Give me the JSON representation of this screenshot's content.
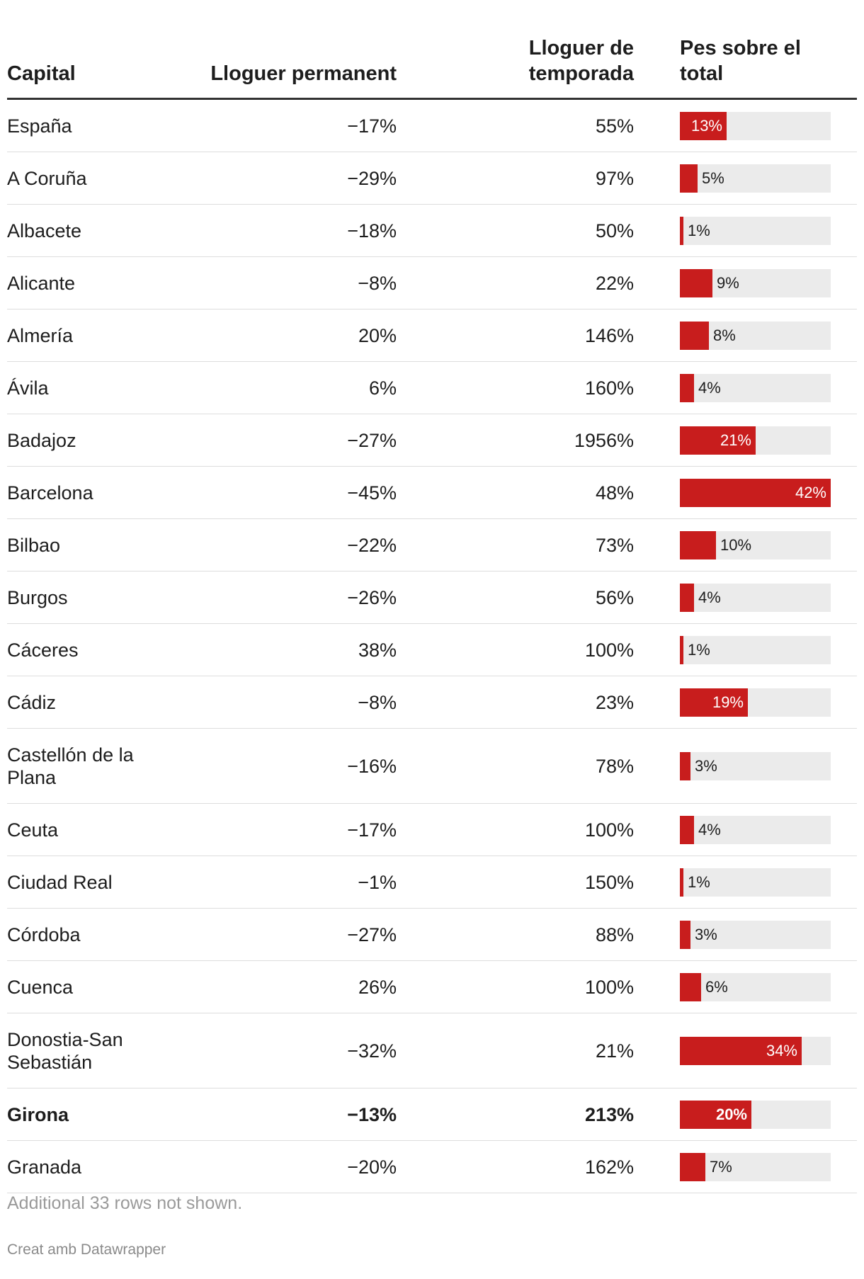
{
  "chart_data": {
    "type": "table",
    "columns": [
      "Capital",
      "Lloguer permanent",
      "Lloguer de temporada",
      "Pes sobre el total"
    ],
    "max_share": 42,
    "highlight_color": "#c81d1d",
    "rows": [
      {
        "capital": "España",
        "permanent": "−17%",
        "temporada": "55%",
        "share": 13,
        "share_label": "13%"
      },
      {
        "capital": "A Coruña",
        "permanent": "−29%",
        "temporada": "97%",
        "share": 5,
        "share_label": "5%"
      },
      {
        "capital": "Albacete",
        "permanent": "−18%",
        "temporada": "50%",
        "share": 1,
        "share_label": "1%"
      },
      {
        "capital": "Alicante",
        "permanent": "−8%",
        "temporada": "22%",
        "share": 9,
        "share_label": "9%"
      },
      {
        "capital": "Almería",
        "permanent": "20%",
        "temporada": "146%",
        "share": 8,
        "share_label": "8%"
      },
      {
        "capital": "Ávila",
        "permanent": "6%",
        "temporada": "160%",
        "share": 4,
        "share_label": "4%"
      },
      {
        "capital": "Badajoz",
        "permanent": "−27%",
        "temporada": "1956%",
        "share": 21,
        "share_label": "21%"
      },
      {
        "capital": "Barcelona",
        "permanent": "−45%",
        "temporada": "48%",
        "share": 42,
        "share_label": "42%"
      },
      {
        "capital": "Bilbao",
        "permanent": "−22%",
        "temporada": "73%",
        "share": 10,
        "share_label": "10%"
      },
      {
        "capital": "Burgos",
        "permanent": "−26%",
        "temporada": "56%",
        "share": 4,
        "share_label": "4%"
      },
      {
        "capital": "Cáceres",
        "permanent": "38%",
        "temporada": "100%",
        "share": 1,
        "share_label": "1%"
      },
      {
        "capital": "Cádiz",
        "permanent": "−8%",
        "temporada": "23%",
        "share": 19,
        "share_label": "19%"
      },
      {
        "capital": "Castellón de la Plana",
        "permanent": "−16%",
        "temporada": "78%",
        "share": 3,
        "share_label": "3%"
      },
      {
        "capital": "Ceuta",
        "permanent": "−17%",
        "temporada": "100%",
        "share": 4,
        "share_label": "4%"
      },
      {
        "capital": "Ciudad Real",
        "permanent": "−1%",
        "temporada": "150%",
        "share": 1,
        "share_label": "1%"
      },
      {
        "capital": "Córdoba",
        "permanent": "−27%",
        "temporada": "88%",
        "share": 3,
        "share_label": "3%"
      },
      {
        "capital": "Cuenca",
        "permanent": "26%",
        "temporada": "100%",
        "share": 6,
        "share_label": "6%"
      },
      {
        "capital": "Donostia-San Sebastián",
        "permanent": "−32%",
        "temporada": "21%",
        "share": 34,
        "share_label": "34%"
      },
      {
        "capital": "Girona",
        "permanent": "−13%",
        "temporada": "213%",
        "share": 20,
        "share_label": "20%",
        "highlight": true
      },
      {
        "capital": "Granada",
        "permanent": "−20%",
        "temporada": "162%",
        "share": 7,
        "share_label": "7%"
      }
    ]
  },
  "footer": {
    "note": "Additional 33 rows not shown.",
    "credit": "Creat amb Datawrapper"
  }
}
